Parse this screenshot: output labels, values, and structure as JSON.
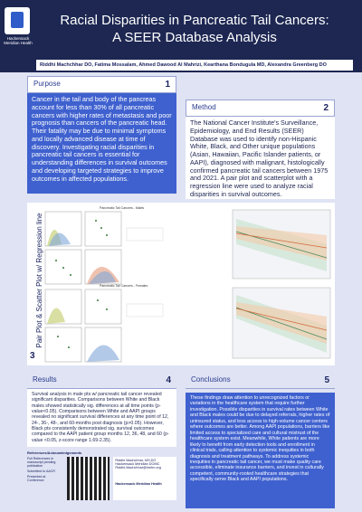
{
  "header": {
    "logo_text": [
      "Hackensack",
      "Meridian Health"
    ],
    "title_lines": [
      "Racial Disparities in Pancreatic Tail Cancers:",
      "A SEER Database Analysis"
    ],
    "authors": "Riddhi Machchhar DO, Fatima Mossalam, Ahmed Dawood Al Mahrizi, Kearthana Bondugula MD, Alexandra Greenberg DO"
  },
  "purpose": {
    "title": "Purpose",
    "number": "1",
    "body": "Cancer in the tail and body of the pancreas account for less than 30% of all pancreatic cancers with higher rates of metastasis and poor prognosis than cancers of the pancreatic head. Their fatality may be due to minimal symptoms and locally advanced disease at time of discovery. Investigating racial disparities in pancreatic tail cancers is essential for understanding differences in survival outcomes and developing targeted strategies to improve outcomes in affected populations."
  },
  "method": {
    "title": "Method",
    "number": "2",
    "body": "The National Cancer Institute's Surveillance, Epidemiology, and End Results (SEER) Database was used to identify non-Hispanic White, Black, and Other unique populations (Asian, Hawaiian, Pacific Islander patients, or AAPI), diagnosed with malignant, histologically confirmed pancreatic tail cancers between 1975 and 2021. A pair plot and scatterplot with a regression line were used to analyze racial disparities in survival outcomes."
  },
  "figure": {
    "label": "Pair Plot & Scatter Plot w/ Regression line",
    "number": "3",
    "panels": [
      "Pancreatic Tail Cancers - Males",
      "Pancreatic Tail Cancers - Females"
    ]
  },
  "results": {
    "title": "Results",
    "number": "4",
    "body": "Survival analysis in male pts w/ pancreatic tail cancer revealed significant disparities. Comparisons between White and Black males showed statistically sig. differences at all time points (p-value<0.05). Comparisons between White and AAPI groups revealed no significant survival differences at any time point of 12, 24-, 36-, 48-, and 60-months post diagnosis (p>0.05). However, Black pts consistently demonstrated sig. survival outcomes compared to the AAPI patient group months 12, 36, 48, and 60 (p-value <0.05, z-score range 1.69-2.35).",
    "references_title": "References/Acknowledgements",
    "references": [
      "Full References in manuscript pending publication",
      "Submitted to AACR",
      "Presented at Conference"
    ],
    "contact": [
      "Riddhi Machchhar, MS,DO",
      "Hackensack Meridian DOMC",
      "Riddhi.Machchhar@hmhn.org",
      "Hackensack Meridian Health"
    ]
  },
  "conclusions": {
    "title": "Conclusions",
    "number": "5",
    "body": "These findings draw attention to unrecognized factors or variations in the healthcare system that require further investigation. Possible disparities in survival rates between White and Black males could be due to delayed referrals, higher rates of uninsured status, and less access to high-volume cancer centers where outcomes are better. Among AAPI populations, barriers like limited access to specialized care and cultural mistrust of the healthcare system exist. Meanwhile, White patients are more likely to benefit from early detection tools and enrollment in clinical trials, calling attention to systemic inequities in both diagnosis and treatment pathways. To address systemic inequities in pancreatic tail cancer, we must make quality care accessible, eliminate insurance barriers, and invest in culturally competent, community-rooted healthcare strategies that specifically serve Black and AAPI populations."
  }
}
